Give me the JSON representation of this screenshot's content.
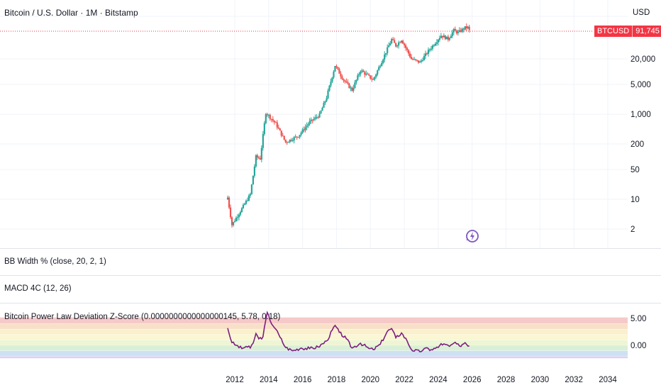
{
  "header": {
    "title": "Bitcoin / U.S. Dollar · 1M · Bitstamp",
    "currency": "USD"
  },
  "price_tag": {
    "symbol": "BTCUSD",
    "value": "91,745"
  },
  "panes": {
    "bb_title": "BB Width % (close, 20, 2, 1)",
    "macd_title": "MACD 4C (12, 26)",
    "z_title": "Bitcoin Power Law Deviation Z-Score (0.0000000000000000145, 5.78, 0.18)"
  },
  "colors": {
    "up": "#26a69a",
    "down": "#ef5350",
    "last_price": "#f23645",
    "zscore_line": "#7b1f7f",
    "badge": "#7e57c2"
  },
  "chart_data": [
    {
      "type": "candlestick",
      "title": "Bitcoin / U.S. Dollar · 1M · Bitstamp",
      "y_scale": "log",
      "y_ticks": [
        2,
        10,
        50,
        200,
        1000,
        5000,
        20000
      ],
      "y_tick_labels": [
        "2",
        "10",
        "50",
        "200",
        "1,000",
        "5,000",
        "20,000"
      ],
      "ylim": [
        1.2,
        150000
      ],
      "x_ticks": [
        "2012",
        "2014",
        "2016",
        "2018",
        "2020",
        "2022",
        "2024",
        "2026",
        "2028",
        "2030",
        "2032",
        "2034"
      ],
      "xlim": [
        "2011-06",
        "2034-12"
      ],
      "last_price": 91745,
      "series_path_approx": [
        [
          "2011-08",
          11
        ],
        [
          "2011-11",
          2.5
        ],
        [
          "2012-06",
          6
        ],
        [
          "2012-12",
          13
        ],
        [
          "2013-04",
          100
        ],
        [
          "2013-07",
          90
        ],
        [
          "2013-11",
          1100
        ],
        [
          "2014-06",
          600
        ],
        [
          "2015-01",
          220
        ],
        [
          "2015-10",
          310
        ],
        [
          "2016-06",
          650
        ],
        [
          "2017-01",
          960
        ],
        [
          "2017-06",
          2500
        ],
        [
          "2017-12",
          14000
        ],
        [
          "2018-06",
          6400
        ],
        [
          "2018-12",
          3700
        ],
        [
          "2019-06",
          10800
        ],
        [
          "2020-03",
          6400
        ],
        [
          "2020-12",
          29000
        ],
        [
          "2021-04",
          57000
        ],
        [
          "2021-07",
          41000
        ],
        [
          "2021-11",
          57000
        ],
        [
          "2022-06",
          19900
        ],
        [
          "2022-12",
          16500
        ],
        [
          "2023-06",
          30500
        ],
        [
          "2024-03",
          71000
        ],
        [
          "2024-08",
          59000
        ],
        [
          "2024-12",
          93000
        ],
        [
          "2025-03",
          82500
        ],
        [
          "2025-08",
          108000
        ],
        [
          "2025-10",
          109000
        ],
        [
          "2025-11",
          91745
        ]
      ]
    },
    {
      "type": "line",
      "title": "Bitcoin Power Law Deviation Z-Score (0.0000000000000000145, 5.78, 0.18)",
      "y_tick_labels": [
        "5.00",
        "0.00"
      ],
      "ylim": [
        -2.5,
        6.5
      ],
      "bands": [
        {
          "from": 4.0,
          "to": 5.2,
          "color": "#f6c9c9"
        },
        {
          "from": 3.0,
          "to": 4.0,
          "color": "#f8e0c8"
        },
        {
          "from": 2.0,
          "to": 3.0,
          "color": "#faf0cc"
        },
        {
          "from": 1.0,
          "to": 2.0,
          "color": "#fbf6d3"
        },
        {
          "from": 0.0,
          "to": 1.0,
          "color": "#eef5d3"
        },
        {
          "from": -1.0,
          "to": 0.0,
          "color": "#d9efd7"
        },
        {
          "from": -2.0,
          "to": -1.0,
          "color": "#cde1f2"
        },
        {
          "from": -2.4,
          "to": -2.0,
          "color": "#d8d2f2"
        }
      ],
      "series": [
        {
          "values": [
            [
              "2011-08",
              3.2
            ],
            [
              "2011-11",
              0.5
            ],
            [
              "2012-02",
              0.0
            ],
            [
              "2012-06",
              -0.6
            ],
            [
              "2012-09",
              -0.2
            ],
            [
              "2012-12",
              -0.5
            ],
            [
              "2013-02",
              0.4
            ],
            [
              "2013-04",
              2.2
            ],
            [
              "2013-06",
              1.2
            ],
            [
              "2013-09",
              1.6
            ],
            [
              "2013-12",
              6.1
            ],
            [
              "2014-02",
              4.6
            ],
            [
              "2014-06",
              3.0
            ],
            [
              "2014-09",
              1.5
            ],
            [
              "2015-01",
              -0.4
            ],
            [
              "2015-06",
              -1.0
            ],
            [
              "2015-12",
              -0.5
            ],
            [
              "2016-06",
              -0.6
            ],
            [
              "2016-12",
              -0.3
            ],
            [
              "2017-06",
              0.8
            ],
            [
              "2017-12",
              3.7
            ],
            [
              "2018-03",
              2.4
            ],
            [
              "2018-08",
              1.2
            ],
            [
              "2018-12",
              -0.5
            ],
            [
              "2019-06",
              0.4
            ],
            [
              "2019-12",
              -0.6
            ],
            [
              "2020-03",
              -0.8
            ],
            [
              "2020-08",
              0.2
            ],
            [
              "2021-01",
              2.6
            ],
            [
              "2021-04",
              3.1
            ],
            [
              "2021-07",
              1.4
            ],
            [
              "2021-11",
              2.3
            ],
            [
              "2022-03",
              0.8
            ],
            [
              "2022-06",
              -0.8
            ],
            [
              "2022-12",
              -1.2
            ],
            [
              "2023-03",
              -0.6
            ],
            [
              "2023-08",
              -0.8
            ],
            [
              "2024-01",
              -0.4
            ],
            [
              "2024-03",
              0.3
            ],
            [
              "2024-09",
              -0.2
            ],
            [
              "2024-12",
              0.4
            ],
            [
              "2025-04",
              -0.1
            ],
            [
              "2025-08",
              0.5
            ],
            [
              "2025-11",
              -0.1
            ]
          ]
        }
      ]
    }
  ]
}
